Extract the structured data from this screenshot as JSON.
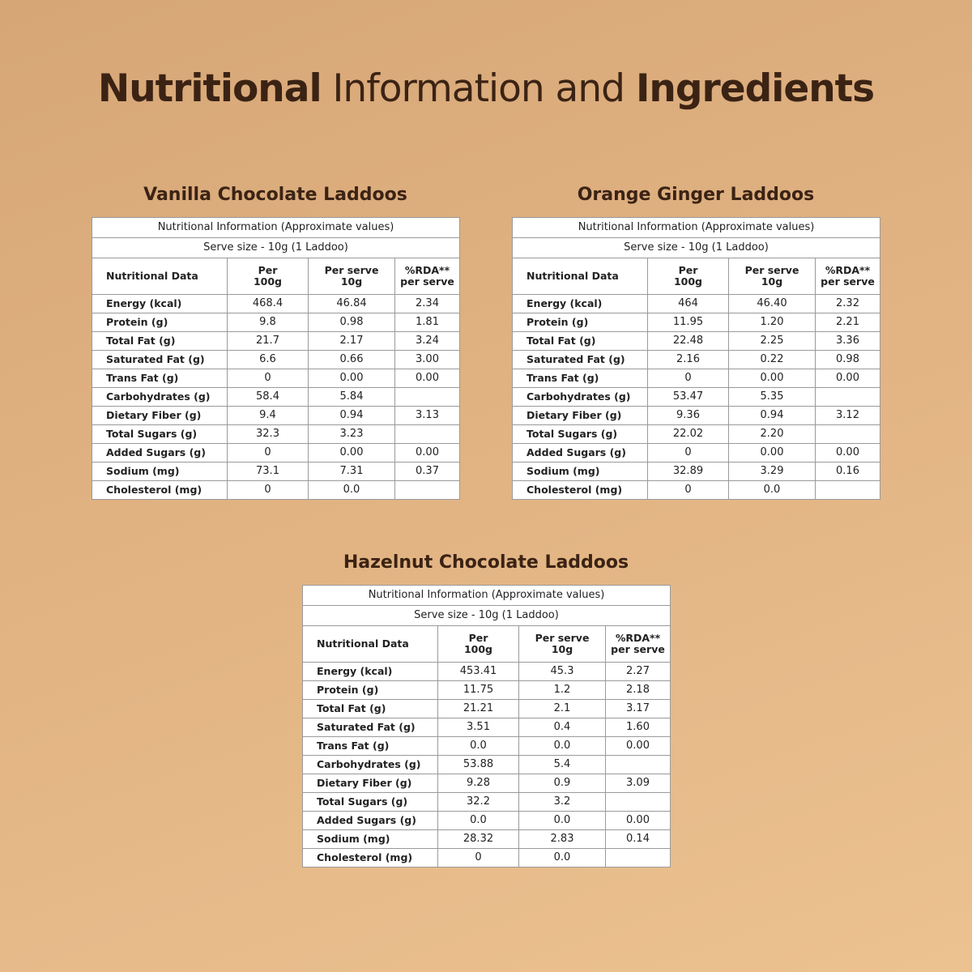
{
  "header": {
    "title": {
      "bold1": "Nutritional",
      "regular": "Information and",
      "bold2": "Ingredients"
    }
  },
  "tables": [
    {
      "title": "Vanilla Chocolate Laddoos",
      "caption1": "Nutritional Information (Approximate values)",
      "caption2": "Serve size - 10g (1 Laddoo)",
      "headers": [
        "Nutritional Data",
        "Per\n100g",
        "Per serve\n10g",
        "%RDA**\nper serve"
      ],
      "rows": [
        [
          "Energy (kcal)",
          "468.4",
          "46.84",
          "2.34"
        ],
        [
          "Protein (g)",
          "9.8",
          "0.98",
          "1.81"
        ],
        [
          "Total Fat (g)",
          "21.7",
          "2.17",
          "3.24"
        ],
        [
          "Saturated Fat (g)",
          "6.6",
          "0.66",
          "3.00"
        ],
        [
          "Trans Fat (g)",
          "0",
          "0.00",
          "0.00"
        ],
        [
          "Carbohydrates (g)",
          "58.4",
          "5.84",
          null
        ],
        [
          "Dietary Fiber (g)",
          "9.4",
          "0.94",
          "3.13"
        ],
        [
          "Total Sugars (g)",
          "32.3",
          "3.23",
          null
        ],
        [
          "Added Sugars (g)",
          "0",
          "0.00",
          "0.00"
        ],
        [
          "Sodium (mg)",
          "73.1",
          "7.31",
          "0.37"
        ],
        [
          "Cholesterol (mg)",
          "0",
          "0.0",
          null
        ]
      ]
    },
    {
      "title": "Orange Ginger Laddoos",
      "caption1": "Nutritional Information (Approximate values)",
      "caption2": "Serve size - 10g (1 Laddoo)",
      "headers": [
        "Nutritional Data",
        "Per\n100g",
        "Per serve\n10g",
        "%RDA**\nper serve"
      ],
      "rows": [
        [
          "Energy (kcal)",
          "464",
          "46.40",
          "2.32"
        ],
        [
          "Protein (g)",
          "11.95",
          "1.20",
          "2.21"
        ],
        [
          "Total Fat (g)",
          "22.48",
          "2.25",
          "3.36"
        ],
        [
          "Saturated Fat (g)",
          "2.16",
          "0.22",
          "0.98"
        ],
        [
          "Trans Fat (g)",
          "0",
          "0.00",
          "0.00"
        ],
        [
          "Carbohydrates (g)",
          "53.47",
          "5.35",
          null
        ],
        [
          "Dietary Fiber (g)",
          "9.36",
          "0.94",
          "3.12"
        ],
        [
          "Total Sugars (g)",
          "22.02",
          "2.20",
          null
        ],
        [
          "Added Sugars (g)",
          "0",
          "0.00",
          "0.00"
        ],
        [
          "Sodium (mg)",
          "32.89",
          "3.29",
          "0.16"
        ],
        [
          "Cholesterol (mg)",
          "0",
          "0.0",
          null
        ]
      ]
    },
    {
      "title": "Hazelnut Chocolate Laddoos",
      "caption1": "Nutritional Information (Approximate values)",
      "caption2": "Serve size - 10g (1 Laddoo)",
      "headers": [
        "Nutritional Data",
        "Per\n100g",
        "Per serve\n10g",
        "%RDA**\nper serve"
      ],
      "rows": [
        [
          "Energy (kcal)",
          "453.41",
          "45.3",
          "2.27"
        ],
        [
          "Protein (g)",
          "11.75",
          "1.2",
          "2.18"
        ],
        [
          "Total Fat (g)",
          "21.21",
          "2.1",
          "3.17"
        ],
        [
          "Saturated Fat (g)",
          "3.51",
          "0.4",
          "1.60"
        ],
        [
          "Trans Fat (g)",
          "0.0",
          "0.0",
          "0.00"
        ],
        [
          "Carbohydrates (g)",
          "53.88",
          "5.4",
          null
        ],
        [
          "Dietary Fiber (g)",
          "9.28",
          "0.9",
          "3.09"
        ],
        [
          "Total Sugars (g)",
          "32.2",
          "3.2",
          null
        ],
        [
          "Added Sugars (g)",
          "0.0",
          "0.0",
          "0.00"
        ],
        [
          "Sodium (mg)",
          "28.32",
          "2.83",
          "0.14"
        ],
        [
          "Cholesterol (mg)",
          "0",
          "0.0",
          null
        ]
      ]
    }
  ]
}
